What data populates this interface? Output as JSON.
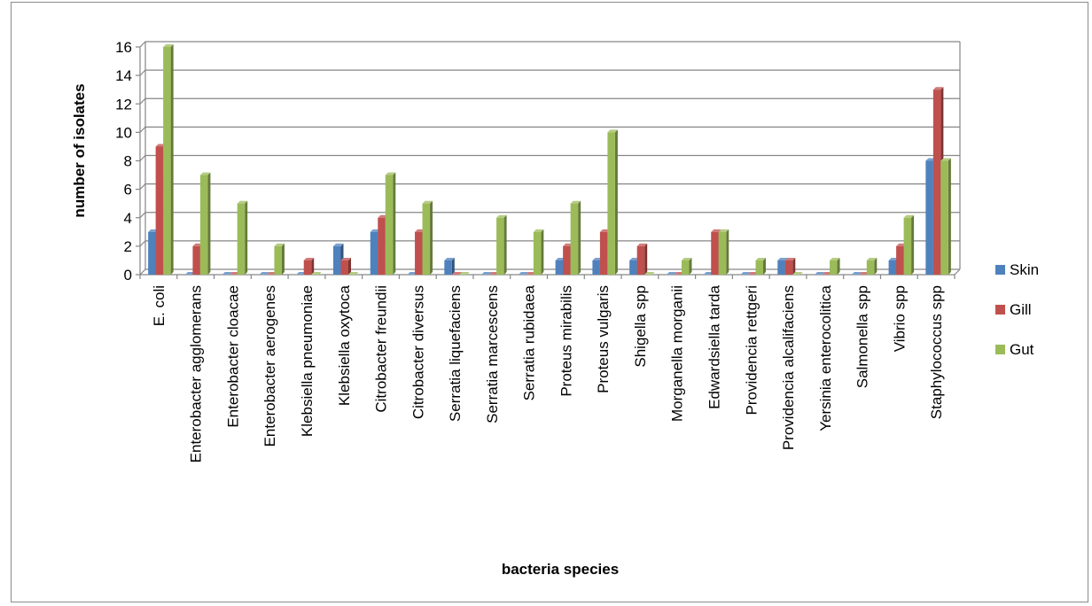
{
  "chart_data": {
    "type": "bar",
    "xlabel": "bacteria species",
    "ylabel": "number of isolates",
    "ylim": [
      0,
      16
    ],
    "yticks": [
      0,
      2,
      4,
      6,
      8,
      10,
      12,
      14,
      16
    ],
    "grid": true,
    "legend_position": "right",
    "categories": [
      "E. coli",
      "Enterobacter agglomerans",
      "Enterobacter cloacae",
      "Enterobacter aerogenes",
      "Klebsiella pneumoniae",
      "Klebsiella oxytoca",
      "Citrobacter freundii",
      "Citrobacter diversus",
      "Serratia liquefaciens",
      "Serratia marcescens",
      "Serratia rubidaea",
      "Proteus mirabilis",
      "Proteus vulgaris",
      "Shigella spp",
      "Morganella morganii",
      "Edwardsiella tarda",
      "Providencia rettgeri",
      "Providencia alcalifaciens",
      "Yersinia enterocolitica",
      "Salmonella spp",
      "Vibrio spp",
      "Staphylococcus spp"
    ],
    "series": [
      {
        "name": "Skin",
        "color": "#4f81bd",
        "values": [
          3,
          0,
          0,
          0,
          0,
          2,
          3,
          0,
          1,
          0,
          0,
          1,
          1,
          1,
          0,
          0,
          0,
          1,
          0,
          0,
          1,
          8
        ]
      },
      {
        "name": "Gill",
        "color": "#c0504d",
        "values": [
          9,
          2,
          0,
          0,
          1,
          1,
          4,
          3,
          0,
          0,
          0,
          2,
          3,
          2,
          0,
          3,
          0,
          1,
          0,
          0,
          2,
          13
        ]
      },
      {
        "name": "Gut",
        "color": "#9bbb59",
        "values": [
          16,
          7,
          5,
          2,
          0,
          0,
          7,
          5,
          0,
          4,
          3,
          5,
          10,
          0,
          1,
          3,
          1,
          0,
          1,
          1,
          4,
          8
        ]
      }
    ]
  }
}
